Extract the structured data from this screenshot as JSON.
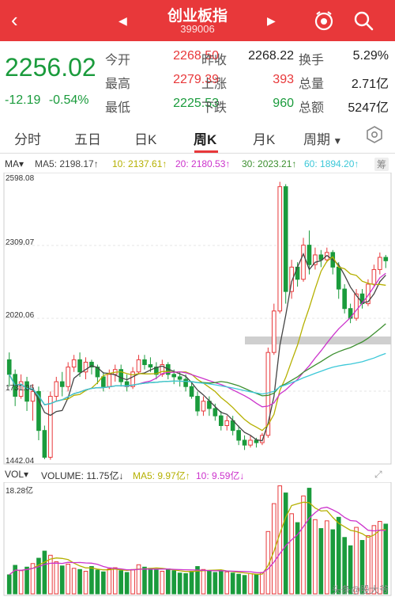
{
  "header": {
    "title": "创业板指",
    "code": "399006",
    "back_glyph": "‹",
    "prev_glyph": "◀",
    "next_glyph": "▶"
  },
  "quote": {
    "price": "2256.02",
    "change": "-12.19",
    "change_pct": "-0.54%",
    "open_label": "今开",
    "open": "2268.50",
    "prev_close_label": "昨收",
    "prev_close": "2268.22",
    "turnover_label": "换手",
    "turnover": "5.29%",
    "high_label": "最高",
    "high": "2279.39",
    "up_label": "上涨",
    "up": "393",
    "volume_label": "总量",
    "volume": "2.71亿",
    "low_label": "最低",
    "low": "2225.53",
    "down_label": "下跌",
    "down": "960",
    "amount_label": "总额",
    "amount": "5247亿"
  },
  "tabs": [
    {
      "label": "分时"
    },
    {
      "label": "五日"
    },
    {
      "label": "日K"
    },
    {
      "label": "周K"
    },
    {
      "label": "月K"
    },
    {
      "label": "周期"
    }
  ],
  "legend": {
    "ma": "MA▾",
    "ma5": "MA5: 2198.17↑",
    "ma10": "10: 2137.61↑",
    "ma20": "20: 2180.53↑",
    "ma30": "30: 2023.21↑",
    "ma60": "60: 1894.20↑",
    "badge": "筹"
  },
  "vlegend": {
    "vol": "VOL▾",
    "volume": "VOLUME: 11.75亿↓",
    "ma5": "MA5: 9.97亿↑",
    "ma10": "10: 9.59亿↓"
  },
  "axis": {
    "y1": "2598.08",
    "y2": "2309.07",
    "y3": "2020.06",
    "y4": "1731.05",
    "y5": "1442.04",
    "vmax": "18.28亿"
  },
  "colors": {
    "up": "#e8383a",
    "down": "#1a9b3c",
    "ma5": "#444444",
    "ma10": "#b5b000",
    "ma20": "#cc33cc",
    "ma30": "#3c8f2f",
    "ma60": "#3cc8d8"
  },
  "footer": "头条@股大爷",
  "chart_data": {
    "type": "candlestick",
    "ylim": [
      1442.04,
      2598.08
    ],
    "candles": [
      [
        1850,
        1790,
        1880,
        1740
      ],
      [
        1790,
        1700,
        1810,
        1660
      ],
      [
        1700,
        1760,
        1790,
        1690
      ],
      [
        1760,
        1680,
        1780,
        1640
      ],
      [
        1680,
        1720,
        1750,
        1600
      ],
      [
        1720,
        1560,
        1740,
        1520
      ],
      [
        1560,
        1450,
        1580,
        1442
      ],
      [
        1450,
        1700,
        1720,
        1440
      ],
      [
        1700,
        1760,
        1780,
        1680
      ],
      [
        1760,
        1740,
        1800,
        1700
      ],
      [
        1740,
        1820,
        1840,
        1720
      ],
      [
        1820,
        1850,
        1870,
        1800
      ],
      [
        1850,
        1800,
        1880,
        1780
      ],
      [
        1800,
        1840,
        1860,
        1770
      ],
      [
        1840,
        1820,
        1850,
        1790
      ],
      [
        1820,
        1780,
        1830,
        1750
      ],
      [
        1780,
        1740,
        1800,
        1720
      ],
      [
        1740,
        1790,
        1810,
        1730
      ],
      [
        1790,
        1810,
        1830,
        1760
      ],
      [
        1810,
        1760,
        1830,
        1740
      ],
      [
        1760,
        1740,
        1790,
        1720
      ],
      [
        1740,
        1800,
        1820,
        1730
      ],
      [
        1800,
        1850,
        1870,
        1790
      ],
      [
        1850,
        1830,
        1870,
        1810
      ],
      [
        1830,
        1820,
        1860,
        1800
      ],
      [
        1820,
        1790,
        1840,
        1770
      ],
      [
        1790,
        1830,
        1850,
        1780
      ],
      [
        1830,
        1790,
        1840,
        1770
      ],
      [
        1790,
        1780,
        1810,
        1750
      ],
      [
        1780,
        1770,
        1800,
        1740
      ],
      [
        1770,
        1740,
        1790,
        1720
      ],
      [
        1740,
        1700,
        1760,
        1690
      ],
      [
        1700,
        1640,
        1720,
        1620
      ],
      [
        1640,
        1680,
        1700,
        1620
      ],
      [
        1680,
        1650,
        1700,
        1620
      ],
      [
        1650,
        1620,
        1670,
        1600
      ],
      [
        1620,
        1580,
        1640,
        1560
      ],
      [
        1580,
        1600,
        1620,
        1560
      ],
      [
        1600,
        1560,
        1620,
        1540
      ],
      [
        1560,
        1520,
        1580,
        1500
      ],
      [
        1520,
        1500,
        1540,
        1480
      ],
      [
        1500,
        1520,
        1540,
        1490
      ],
      [
        1520,
        1510,
        1530,
        1490
      ],
      [
        1510,
        1540,
        1550,
        1500
      ],
      [
        1540,
        1880,
        1900,
        1530
      ],
      [
        1880,
        2050,
        2080,
        1870
      ],
      [
        2050,
        2560,
        2580,
        2040
      ],
      [
        2560,
        2130,
        2570,
        2080
      ],
      [
        2130,
        2230,
        2260,
        2100
      ],
      [
        2230,
        2180,
        2250,
        2150
      ],
      [
        2180,
        2320,
        2350,
        2170
      ],
      [
        2320,
        2240,
        2380,
        2200
      ],
      [
        2240,
        2280,
        2310,
        2220
      ],
      [
        2280,
        2260,
        2300,
        2230
      ],
      [
        2260,
        2290,
        2310,
        2250
      ],
      [
        2290,
        2230,
        2300,
        2200
      ],
      [
        2230,
        2140,
        2250,
        2100
      ],
      [
        2140,
        2060,
        2160,
        2040
      ],
      [
        2060,
        2020,
        2080,
        2000
      ],
      [
        2020,
        2120,
        2140,
        2010
      ],
      [
        2120,
        2080,
        2140,
        2060
      ],
      [
        2080,
        2160,
        2180,
        2070
      ],
      [
        2160,
        2220,
        2240,
        2150
      ],
      [
        2220,
        2270,
        2290,
        2200
      ],
      [
        2270,
        2256,
        2280,
        2226
      ]
    ],
    "volumes": [
      3.2,
      4.8,
      3.9,
      4.5,
      5.1,
      6.0,
      7.2,
      6.5,
      5.4,
      4.7,
      5.0,
      4.3,
      4.1,
      3.8,
      4.6,
      4.0,
      3.7,
      4.2,
      4.4,
      3.9,
      3.6,
      4.1,
      4.9,
      4.5,
      4.3,
      4.0,
      3.8,
      4.2,
      3.9,
      3.5,
      3.4,
      3.8,
      4.6,
      4.1,
      3.9,
      3.6,
      4.0,
      3.7,
      3.5,
      3.3,
      3.1,
      3.4,
      3.2,
      3.6,
      10.5,
      15.2,
      18.2,
      17.0,
      13.5,
      12.0,
      16.5,
      17.8,
      12.5,
      11.0,
      12.3,
      10.8,
      12.9,
      9.5,
      8.1,
      11.2,
      9.0,
      9.8,
      11.5,
      12.2,
      11.75
    ]
  }
}
